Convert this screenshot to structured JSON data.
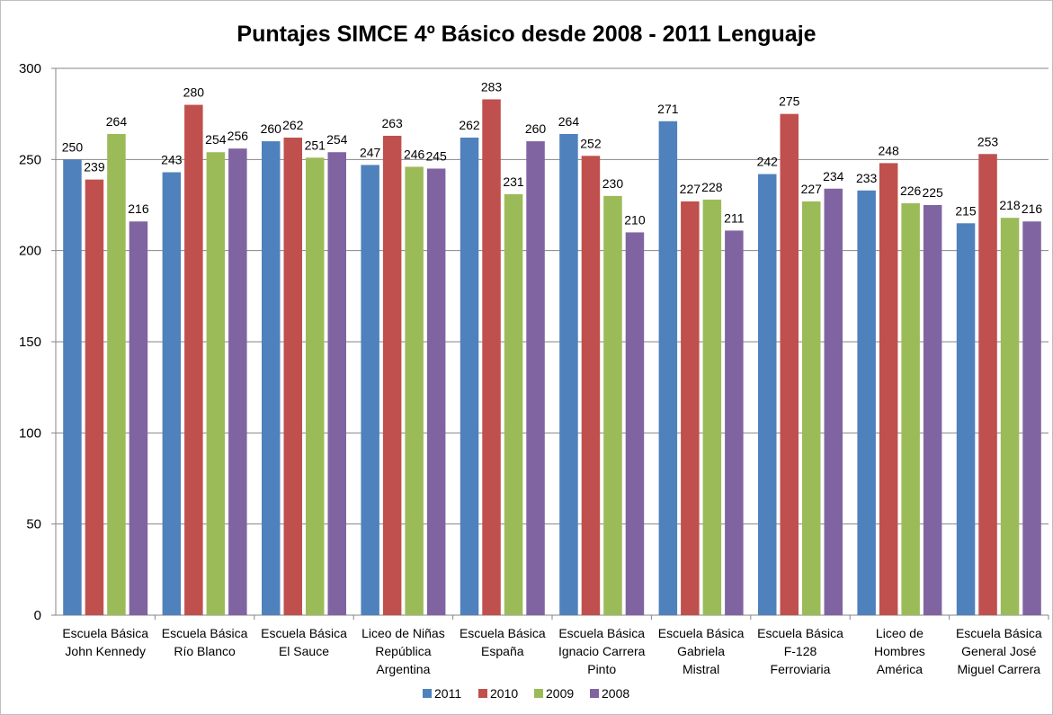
{
  "chart_data": {
    "type": "bar",
    "title": "Puntajes SIMCE 4º Básico desde 2008 - 2011 Lenguaje",
    "categories": [
      [
        "Escuela Básica",
        "John Kennedy"
      ],
      [
        "Escuela Básica",
        "Río Blanco"
      ],
      [
        "Escuela Básica",
        "El Sauce"
      ],
      [
        "Liceo de Niñas",
        "República",
        "Argentina"
      ],
      [
        "Escuela Básica",
        "España"
      ],
      [
        "Escuela Básica",
        "Ignacio Carrera",
        "Pinto"
      ],
      [
        "Escuela Básica",
        "Gabriela",
        "Mistral"
      ],
      [
        "Escuela Básica",
        "F-128",
        "Ferroviaria"
      ],
      [
        "Liceo de",
        "Hombres",
        "América"
      ],
      [
        "Escuela Básica",
        "General José",
        "Miguel Carrera"
      ]
    ],
    "series": [
      {
        "name": "2011",
        "color": "#4f81bd",
        "values": [
          250,
          243,
          260,
          247,
          262,
          264,
          271,
          242,
          233,
          215
        ]
      },
      {
        "name": "2010",
        "color": "#c0504d",
        "values": [
          239,
          280,
          262,
          263,
          283,
          252,
          227,
          275,
          248,
          253
        ]
      },
      {
        "name": "2009",
        "color": "#9bbb59",
        "values": [
          264,
          254,
          251,
          246,
          231,
          230,
          228,
          227,
          226,
          218
        ]
      },
      {
        "name": "2008",
        "color": "#8064a2",
        "values": [
          216,
          256,
          254,
          245,
          260,
          210,
          211,
          234,
          225,
          216
        ]
      }
    ],
    "ylim": [
      0,
      300
    ],
    "yticks": [
      0,
      50,
      100,
      150,
      200,
      250,
      300
    ],
    "grid": true,
    "legend_position": "bottom",
    "data_labels": true
  }
}
